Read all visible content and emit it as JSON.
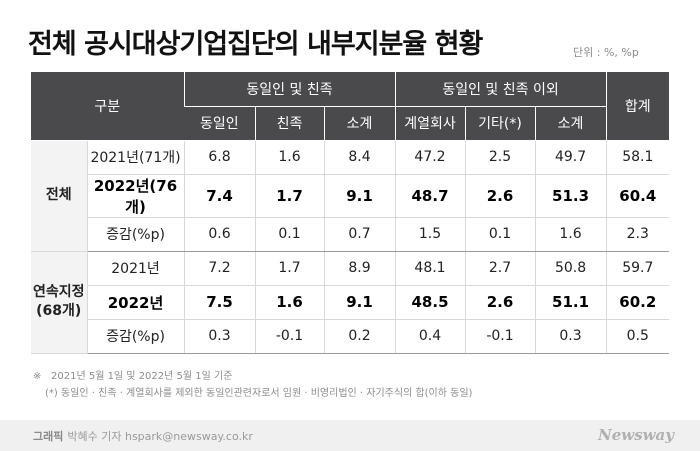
{
  "title": "전체 공시대상기업집단의 내부지분율 현황",
  "unit": "단위 : %, %p",
  "table": {
    "header_top": {
      "category": "구분",
      "group1": "동일인 및 친족",
      "group2": "동일인 및 친족 이외",
      "total": "합계"
    },
    "header_sub": [
      "동일인",
      "친족",
      "소계",
      "계열회사",
      "기타(*)",
      "소계"
    ],
    "groups": [
      {
        "name": "전체",
        "rows": [
          {
            "label": "2021년(71개)",
            "values": [
              "6.8",
              "1.6",
              "8.4",
              "47.2",
              "2.5",
              "49.7",
              "58.1"
            ]
          },
          {
            "label": "2022년(76개)",
            "values": [
              "7.4",
              "1.7",
              "9.1",
              "48.7",
              "2.6",
              "51.3",
              "60.4"
            ]
          },
          {
            "label": "증감(%p)",
            "values": [
              "0.6",
              "0.1",
              "0.7",
              "1.5",
              "0.1",
              "1.6",
              "2.3"
            ]
          }
        ]
      },
      {
        "name_line1": "연속지정",
        "name_line2": "(68개)",
        "rows": [
          {
            "label": "2021년",
            "values": [
              "7.2",
              "1.7",
              "8.9",
              "48.1",
              "2.7",
              "50.8",
              "59.7"
            ]
          },
          {
            "label": "2022년",
            "values": [
              "7.5",
              "1.6",
              "9.1",
              "48.5",
              "2.6",
              "51.1",
              "60.2"
            ]
          },
          {
            "label": "증감(%p)",
            "values": [
              "0.3",
              "-0.1",
              "0.2",
              "0.4",
              "-0.1",
              "0.3",
              "0.5"
            ]
          }
        ]
      }
    ]
  },
  "notes": {
    "mark": "※",
    "line1": "2021년 5월 1일 및 2022년 5월 1일 기준",
    "line2": "(*) 동일인 · 친족 · 계열회사를 제외한 동일인관련자로서 임원 · 비영리법인 · 자기주식의 합(이하 동일)"
  },
  "footer": {
    "credit_label": "그래픽",
    "credit_text": "박혜수 기자 hspark@newsway.co.kr",
    "logo": "Newsway"
  }
}
